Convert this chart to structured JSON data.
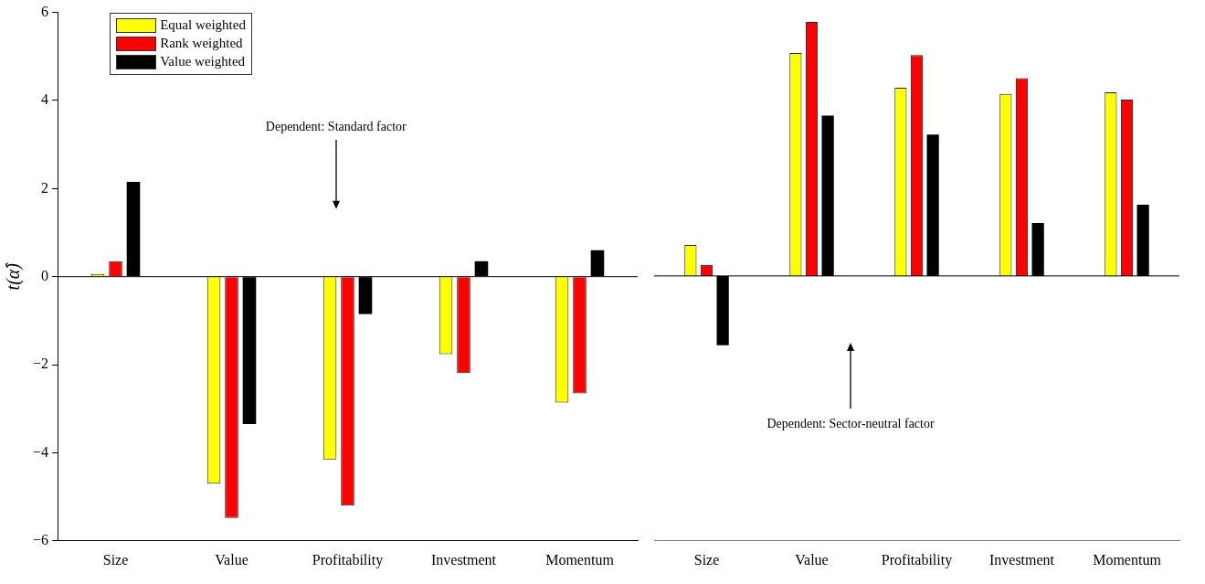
{
  "chart_data": [
    {
      "type": "bar",
      "ylabel": "t(α̂)",
      "categories": [
        "Size",
        "Value",
        "Profitability",
        "Investment",
        "Momentum"
      ],
      "series": [
        {
          "name": "Equal weighted",
          "color": "#ffff00",
          "values": [
            0.06,
            -4.7,
            -4.15,
            -1.76,
            -2.86
          ]
        },
        {
          "name": "Rank weighted",
          "color": "#ff0000",
          "values": [
            0.35,
            -5.48,
            -5.2,
            -2.19,
            -2.65
          ]
        },
        {
          "name": "Value weighted",
          "color": "#000000",
          "values": [
            2.15,
            -3.35,
            -0.85,
            0.35,
            0.6
          ]
        }
      ],
      "ylim": [
        -6,
        6
      ],
      "yticks": [
        -6,
        -4,
        -2,
        0,
        2,
        4,
        6
      ],
      "grid": false,
      "legend": "top left",
      "ref_lines": [
        {
          "axis": "y",
          "value": 0
        }
      ],
      "annotations": [
        "Dependent: Standard factor"
      ]
    },
    {
      "type": "bar",
      "categories": [
        "Size",
        "Value",
        "Profitability",
        "Investment",
        "Momentum"
      ],
      "series": [
        {
          "color": "#ffff00",
          "values": [
            0.7,
            5.05,
            4.26,
            4.12,
            4.16
          ]
        },
        {
          "color": "#ff0000",
          "values": [
            0.25,
            5.75,
            5.0,
            4.48,
            3.99
          ]
        },
        {
          "color": "#000000",
          "values": [
            -1.57,
            3.63,
            3.2,
            1.2,
            1.61
          ]
        }
      ],
      "ylim": [
        -6,
        6
      ],
      "yticks": [
        -6,
        -4,
        -2,
        0,
        2,
        4,
        6
      ],
      "grid": false,
      "legend": false,
      "tick_labels": "x",
      "ref_lines": [
        {
          "axis": "y",
          "value": 0
        }
      ],
      "annotations": [
        "Dependent: Sector-neutral factor"
      ]
    }
  ]
}
